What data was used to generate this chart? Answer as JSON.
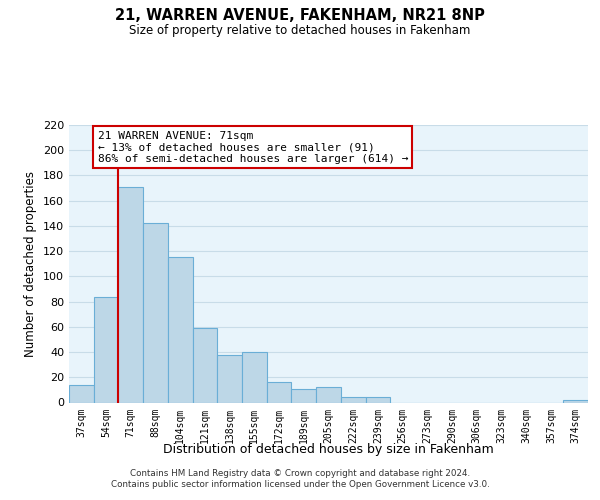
{
  "title": "21, WARREN AVENUE, FAKENHAM, NR21 8NP",
  "subtitle": "Size of property relative to detached houses in Fakenham",
  "xlabel": "Distribution of detached houses by size in Fakenham",
  "ylabel": "Number of detached properties",
  "categories": [
    "37sqm",
    "54sqm",
    "71sqm",
    "88sqm",
    "104sqm",
    "121sqm",
    "138sqm",
    "155sqm",
    "172sqm",
    "189sqm",
    "205sqm",
    "222sqm",
    "239sqm",
    "256sqm",
    "273sqm",
    "290sqm",
    "306sqm",
    "323sqm",
    "340sqm",
    "357sqm",
    "374sqm"
  ],
  "values": [
    14,
    84,
    171,
    142,
    115,
    59,
    38,
    40,
    16,
    11,
    12,
    4,
    4,
    0,
    0,
    0,
    0,
    0,
    0,
    0,
    2
  ],
  "bar_color": "#bdd7e7",
  "bar_edge_color": "#6aaed6",
  "highlight_index": 2,
  "highlight_line_color": "#cc0000",
  "ylim": [
    0,
    220
  ],
  "yticks": [
    0,
    20,
    40,
    60,
    80,
    100,
    120,
    140,
    160,
    180,
    200,
    220
  ],
  "annotation_title": "21 WARREN AVENUE: 71sqm",
  "annotation_line1": "← 13% of detached houses are smaller (91)",
  "annotation_line2": "86% of semi-detached houses are larger (614) →",
  "annotation_box_color": "#ffffff",
  "annotation_box_edge": "#cc0000",
  "footer_line1": "Contains HM Land Registry data © Crown copyright and database right 2024.",
  "footer_line2": "Contains public sector information licensed under the Open Government Licence v3.0.",
  "background_color": "#e8f4fb",
  "fig_bg_color": "#ffffff",
  "grid_color": "#c8dce8"
}
